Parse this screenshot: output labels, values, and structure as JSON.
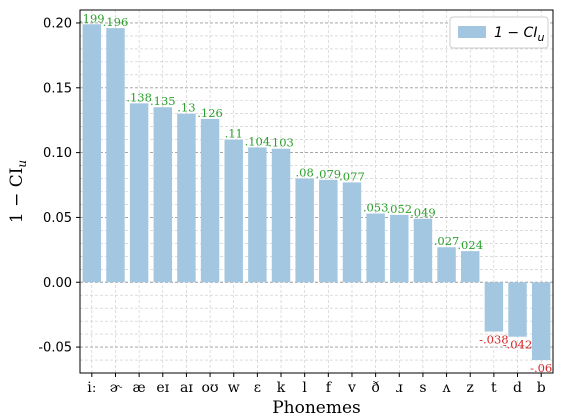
{
  "chart_data": {
    "type": "bar",
    "xlabel": "Phonemes",
    "ylabel": "1 − CI",
    "ylabel_subscript": "u",
    "ylim": [
      -0.07,
      0.21
    ],
    "yticks": [
      -0.05,
      0.0,
      0.05,
      0.1,
      0.15,
      0.2
    ],
    "ytick_labels": [
      "-0.05",
      "0.00",
      "0.05",
      "0.10",
      "0.15",
      "0.20"
    ],
    "grid": true,
    "legend_position": "top-right",
    "series": [
      {
        "name": "1 − CI",
        "name_subscript": "u",
        "color": "#a3c7e0",
        "values": [
          0.199,
          0.196,
          0.138,
          0.135,
          0.13,
          0.126,
          0.11,
          0.104,
          0.103,
          0.08,
          0.079,
          0.077,
          0.053,
          0.052,
          0.049,
          0.027,
          0.024,
          -0.038,
          -0.042,
          -0.06
        ]
      }
    ],
    "categories": [
      "iː",
      "ɚ",
      "æ",
      "eɪ",
      "aɪ",
      "oʊ",
      "w",
      "ɛ",
      "k",
      "l",
      "f",
      "v",
      "ð",
      "ɹ",
      "s",
      "ʌ",
      "z",
      "t",
      "d",
      "b"
    ],
    "data_labels": [
      ".199",
      ".196",
      ".138",
      ".135",
      ".13",
      ".126",
      ".11",
      ".104",
      ".103",
      ".08",
      ".079",
      ".077",
      ".053",
      ".052",
      ".049",
      ".027",
      ".024",
      "-.038",
      "-.042",
      "-.06"
    ],
    "positive_label_color": "#2ca02c",
    "negative_label_color": "#d62728"
  }
}
